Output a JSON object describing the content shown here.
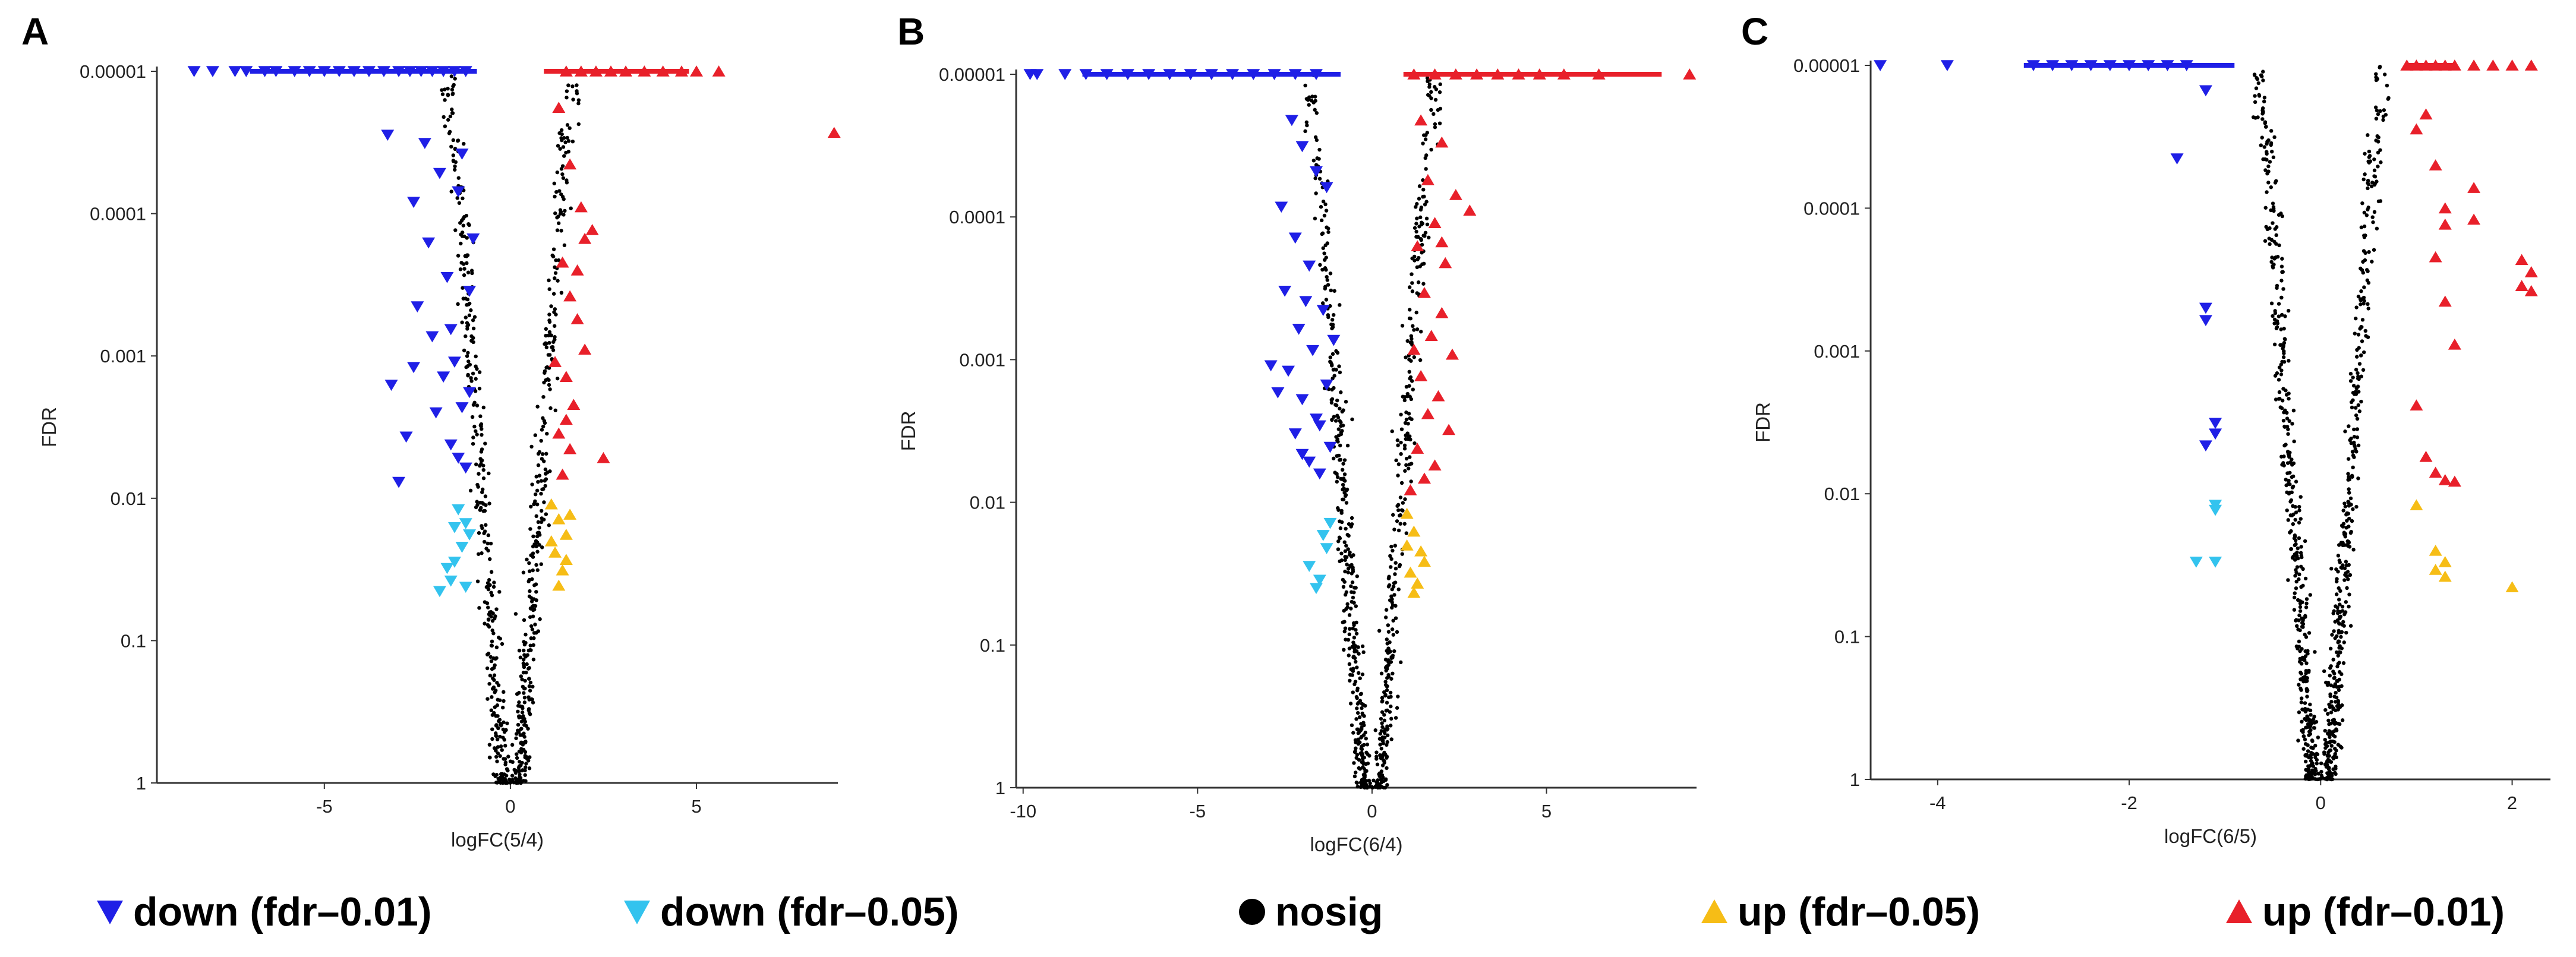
{
  "figure": {
    "legend": [
      {
        "label": "down (fdr–0.01)",
        "marker": "down-triangle",
        "color": "#1f1fe6"
      },
      {
        "label": "down (fdr–0.05)",
        "marker": "down-triangle",
        "color": "#33c3ee"
      },
      {
        "label": "nosig",
        "marker": "dot",
        "color": "#000000"
      },
      {
        "label": "up (fdr–0.05)",
        "marker": "up-triangle",
        "color": "#f6bd16"
      },
      {
        "label": "up (fdr–0.01)",
        "marker": "up-triangle",
        "color": "#e8202a"
      }
    ]
  },
  "chart_data": [
    {
      "panel": "A",
      "type": "scatter",
      "title": "",
      "xlabel": "logFC(5/4)",
      "ylabel": "FDR",
      "xlim": [
        -9.5,
        8.8
      ],
      "xticks": [
        -5,
        0,
        5
      ],
      "xtick_labels": [
        "-5",
        "0",
        "5"
      ],
      "y_scale": "log-reversed",
      "ylim": [
        1,
        1e-05
      ],
      "yticks": [
        1e-05,
        0.0001,
        0.001,
        0.01,
        0.1,
        1
      ],
      "ytick_labels": [
        "0.00001",
        "0.0001",
        "0.001",
        "0.01",
        "0.1",
        "1"
      ],
      "grid": false,
      "legend_placement": "bottom",
      "down_strong": [
        [
          -8.5,
          1e-05
        ],
        [
          -8.0,
          1e-05
        ],
        [
          -7.4,
          1e-05
        ],
        [
          -7.1,
          1e-05
        ],
        [
          -6.6,
          1e-05
        ],
        [
          -6.3,
          1e-05
        ],
        [
          -5.8,
          1e-05
        ],
        [
          -5.4,
          1e-05
        ],
        [
          -5.0,
          1e-05
        ],
        [
          -4.6,
          1e-05
        ],
        [
          -4.2,
          1e-05
        ],
        [
          -3.8,
          1e-05
        ],
        [
          -3.4,
          1e-05
        ],
        [
          -3.0,
          1e-05
        ],
        [
          -2.7,
          1e-05
        ],
        [
          -2.4,
          1e-05
        ],
        [
          -2.1,
          1e-05
        ],
        [
          -1.8,
          1e-05
        ],
        [
          -1.5,
          1e-05
        ],
        [
          -1.2,
          1e-05
        ],
        [
          -3.3,
          2.8e-05
        ],
        [
          -3.2,
          0.0016
        ],
        [
          -3.0,
          0.0077
        ],
        [
          -2.8,
          0.0037
        ],
        [
          -2.6,
          0.0012
        ],
        [
          -2.6,
          8.3e-05
        ],
        [
          -2.3,
          3.2e-05
        ],
        [
          -2.2,
          0.00016
        ],
        [
          -2.0,
          0.0025
        ],
        [
          -1.9,
          5.2e-05
        ],
        [
          -1.7,
          0.00028
        ],
        [
          -1.6,
          0.0042
        ],
        [
          -1.5,
          0.0011
        ],
        [
          -1.4,
          7e-05
        ],
        [
          -1.3,
          0.0023
        ],
        [
          -1.2,
          0.0061
        ],
        [
          -1.1,
          0.00035
        ],
        [
          -1.0,
          0.00015
        ],
        [
          -2.5,
          0.00045
        ],
        [
          -1.8,
          0.0014
        ],
        [
          -1.4,
          0.0052
        ],
        [
          -2.1,
          0.00073
        ],
        [
          -1.3,
          3.8e-05
        ],
        [
          -1.6,
          0.00065
        ],
        [
          -1.1,
          0.0018
        ]
      ],
      "down_weak": [
        [
          -1.9,
          0.045
        ],
        [
          -1.6,
          0.038
        ],
        [
          -1.5,
          0.028
        ],
        [
          -1.3,
          0.022
        ],
        [
          -1.2,
          0.015
        ],
        [
          -1.4,
          0.012
        ],
        [
          -1.1,
          0.018
        ],
        [
          -1.7,
          0.031
        ],
        [
          -1.2,
          0.042
        ],
        [
          -1.5,
          0.016
        ]
      ],
      "up_weak": [
        [
          1.1,
          0.011
        ],
        [
          1.3,
          0.014
        ],
        [
          1.5,
          0.018
        ],
        [
          1.2,
          0.024
        ],
        [
          1.4,
          0.032
        ],
        [
          1.6,
          0.013
        ],
        [
          1.3,
          0.041
        ],
        [
          1.5,
          0.027
        ],
        [
          1.1,
          0.02
        ]
      ],
      "up_strong": [
        [
          1.5,
          1e-05
        ],
        [
          1.9,
          1e-05
        ],
        [
          2.3,
          1e-05
        ],
        [
          2.7,
          1e-05
        ],
        [
          3.1,
          1e-05
        ],
        [
          3.6,
          1e-05
        ],
        [
          4.1,
          1e-05
        ],
        [
          4.6,
          1e-05
        ],
        [
          5.0,
          1e-05
        ],
        [
          5.6,
          1e-05
        ],
        [
          8.7,
          2.7e-05
        ],
        [
          1.3,
          1.8e-05
        ],
        [
          1.6,
          4.5e-05
        ],
        [
          1.9,
          9e-05
        ],
        [
          2.0,
          0.00015
        ],
        [
          2.2,
          0.00013
        ],
        [
          1.4,
          0.00022
        ],
        [
          1.6,
          0.00038
        ],
        [
          1.8,
          0.00055
        ],
        [
          2.0,
          0.0009
        ],
        [
          1.5,
          0.0014
        ],
        [
          1.7,
          0.0022
        ],
        [
          1.3,
          0.0035
        ],
        [
          1.6,
          0.0045
        ],
        [
          2.5,
          0.0052
        ],
        [
          1.4,
          0.0068
        ],
        [
          1.2,
          0.0011
        ],
        [
          1.8,
          0.00025
        ],
        [
          1.5,
          0.0028
        ]
      ],
      "nosig_count": 720
    },
    {
      "panel": "B",
      "type": "scatter",
      "title": "",
      "xlabel": "logFC(6/4)",
      "ylabel": "FDR",
      "xlim": [
        -10.2,
        9.3
      ],
      "xticks": [
        -10,
        -5,
        0,
        5
      ],
      "xtick_labels": [
        "-10",
        "-5",
        "0",
        "5"
      ],
      "y_scale": "log-reversed",
      "ylim": [
        1,
        1e-05
      ],
      "yticks": [
        1e-05,
        0.0001,
        0.001,
        0.01,
        0.1,
        1
      ],
      "ytick_labels": [
        "0.00001",
        "0.0001",
        "0.001",
        "0.01",
        "0.1",
        "1"
      ],
      "grid": false,
      "legend_placement": "bottom",
      "down_strong": [
        [
          -9.8,
          1e-05
        ],
        [
          -9.6,
          1e-05
        ],
        [
          -8.8,
          1e-05
        ],
        [
          -8.2,
          1e-05
        ],
        [
          -7.6,
          1e-05
        ],
        [
          -7.0,
          1e-05
        ],
        [
          -6.4,
          1e-05
        ],
        [
          -5.8,
          1e-05
        ],
        [
          -5.2,
          1e-05
        ],
        [
          -4.6,
          1e-05
        ],
        [
          -4.0,
          1e-05
        ],
        [
          -3.4,
          1e-05
        ],
        [
          -2.8,
          1e-05
        ],
        [
          -2.2,
          1e-05
        ],
        [
          -1.6,
          1e-05
        ],
        [
          -2.3,
          2.1e-05
        ],
        [
          -2.0,
          3.2e-05
        ],
        [
          -1.6,
          4.8e-05
        ],
        [
          -2.6,
          8.5e-05
        ],
        [
          -2.2,
          0.00014
        ],
        [
          -1.8,
          0.00022
        ],
        [
          -2.5,
          0.00033
        ],
        [
          -1.4,
          0.00045
        ],
        [
          -2.1,
          0.00061
        ],
        [
          -1.7,
          0.00086
        ],
        [
          -2.4,
          0.0012
        ],
        [
          -1.3,
          0.0015
        ],
        [
          -2.0,
          0.0019
        ],
        [
          -1.6,
          0.0026
        ],
        [
          -2.2,
          0.0033
        ],
        [
          -1.2,
          0.0041
        ],
        [
          -1.8,
          0.0052
        ],
        [
          -1.5,
          0.0063
        ],
        [
          -2.7,
          0.0017
        ],
        [
          -1.1,
          0.00073
        ],
        [
          -2.9,
          0.0011
        ],
        [
          -1.9,
          0.00039
        ],
        [
          -1.5,
          0.0029
        ],
        [
          -1.3,
          6.2e-05
        ],
        [
          -2.0,
          0.0046
        ]
      ],
      "down_weak": [
        [
          -1.8,
          0.028
        ],
        [
          -1.5,
          0.035
        ],
        [
          -1.3,
          0.021
        ],
        [
          -1.6,
          0.04
        ],
        [
          -1.2,
          0.014
        ],
        [
          -1.4,
          0.017
        ]
      ],
      "up_weak": [
        [
          1.0,
          0.012
        ],
        [
          1.2,
          0.016
        ],
        [
          1.4,
          0.022
        ],
        [
          1.1,
          0.031
        ],
        [
          1.3,
          0.037
        ],
        [
          1.5,
          0.026
        ],
        [
          1.2,
          0.043
        ],
        [
          1.0,
          0.02
        ]
      ],
      "up_strong": [
        [
          1.2,
          1e-05
        ],
        [
          1.8,
          1e-05
        ],
        [
          2.4,
          1e-05
        ],
        [
          3.0,
          1e-05
        ],
        [
          3.6,
          1e-05
        ],
        [
          4.2,
          1e-05
        ],
        [
          4.8,
          1e-05
        ],
        [
          5.5,
          1e-05
        ],
        [
          6.5,
          1e-05
        ],
        [
          9.1,
          1e-05
        ],
        [
          1.4,
          2.1e-05
        ],
        [
          2.0,
          3e-05
        ],
        [
          1.6,
          5.5e-05
        ],
        [
          2.4,
          7e-05
        ],
        [
          1.8,
          0.00011
        ],
        [
          2.8,
          9e-05
        ],
        [
          1.3,
          0.00016
        ],
        [
          2.1,
          0.00021
        ],
        [
          1.5,
          0.00034
        ],
        [
          2.0,
          0.00047
        ],
        [
          1.7,
          0.00068
        ],
        [
          2.3,
          0.00092
        ],
        [
          1.4,
          0.0013
        ],
        [
          1.9,
          0.0018
        ],
        [
          1.6,
          0.0024
        ],
        [
          2.2,
          0.0031
        ],
        [
          1.3,
          0.0042
        ],
        [
          1.8,
          0.0055
        ],
        [
          1.5,
          0.0068
        ],
        [
          1.1,
          0.0082
        ],
        [
          2.0,
          0.00015
        ],
        [
          1.2,
          0.00085
        ]
      ],
      "nosig_count": 760
    },
    {
      "panel": "C",
      "type": "scatter",
      "title": "",
      "xlabel": "logFC(6/5)",
      "ylabel": "FDR",
      "xlim": [
        -4.7,
        2.4
      ],
      "xticks": [
        -4,
        -2,
        0,
        2
      ],
      "xtick_labels": [
        "-4",
        "-2",
        "0",
        "2"
      ],
      "y_scale": "log-reversed",
      "ylim": [
        1,
        1e-05
      ],
      "yticks": [
        1e-05,
        0.0001,
        0.001,
        0.01,
        0.1,
        1
      ],
      "ytick_labels": [
        "0.00001",
        "0.0001",
        "0.001",
        "0.01",
        "0.1",
        "1"
      ],
      "grid": false,
      "legend_placement": "bottom",
      "down_strong": [
        [
          -4.6,
          1e-05
        ],
        [
          -3.9,
          1e-05
        ],
        [
          -3.0,
          1e-05
        ],
        [
          -2.8,
          1e-05
        ],
        [
          -2.6,
          1e-05
        ],
        [
          -2.4,
          1e-05
        ],
        [
          -2.2,
          1e-05
        ],
        [
          -2.0,
          1e-05
        ],
        [
          -1.8,
          1e-05
        ],
        [
          -1.6,
          1e-05
        ],
        [
          -1.4,
          1e-05
        ],
        [
          -1.2,
          1.5e-05
        ],
        [
          -1.5,
          4.5e-05
        ],
        [
          -1.2,
          0.0005
        ],
        [
          -1.2,
          0.00061
        ],
        [
          -1.1,
          0.0038
        ],
        [
          -1.2,
          0.0046
        ],
        [
          -1.1,
          0.0032
        ]
      ],
      "down_weak": [
        [
          -1.3,
          0.03
        ],
        [
          -1.1,
          0.03
        ],
        [
          -1.1,
          0.013
        ],
        [
          -1.1,
          0.012
        ]
      ],
      "up_weak": [
        [
          1.0,
          0.012
        ],
        [
          1.2,
          0.025
        ],
        [
          1.3,
          0.03
        ],
        [
          1.3,
          0.038
        ],
        [
          1.2,
          0.034
        ],
        [
          2.0,
          0.045
        ]
      ],
      "up_strong": [
        [
          0.9,
          1e-05
        ],
        [
          1.0,
          1e-05
        ],
        [
          1.1,
          1e-05
        ],
        [
          1.2,
          1e-05
        ],
        [
          1.3,
          1e-05
        ],
        [
          1.4,
          1e-05
        ],
        [
          1.6,
          1e-05
        ],
        [
          1.8,
          1e-05
        ],
        [
          2.0,
          1e-05
        ],
        [
          2.2,
          1e-05
        ],
        [
          1.0,
          2.8e-05
        ],
        [
          1.1,
          2.2e-05
        ],
        [
          1.2,
          5e-05
        ],
        [
          1.3,
          0.0001
        ],
        [
          1.3,
          0.00013
        ],
        [
          1.2,
          0.00022
        ],
        [
          1.3,
          0.00045
        ],
        [
          1.6,
          7.2e-05
        ],
        [
          1.6,
          0.00012
        ],
        [
          2.1,
          0.00023
        ],
        [
          2.2,
          0.00028
        ],
        [
          2.1,
          0.00035
        ],
        [
          2.2,
          0.00038
        ],
        [
          1.4,
          0.0009
        ],
        [
          1.0,
          0.0024
        ],
        [
          1.1,
          0.0055
        ],
        [
          1.2,
          0.0071
        ],
        [
          1.3,
          0.008
        ],
        [
          1.4,
          0.0082
        ]
      ],
      "nosig_count": 900
    }
  ]
}
